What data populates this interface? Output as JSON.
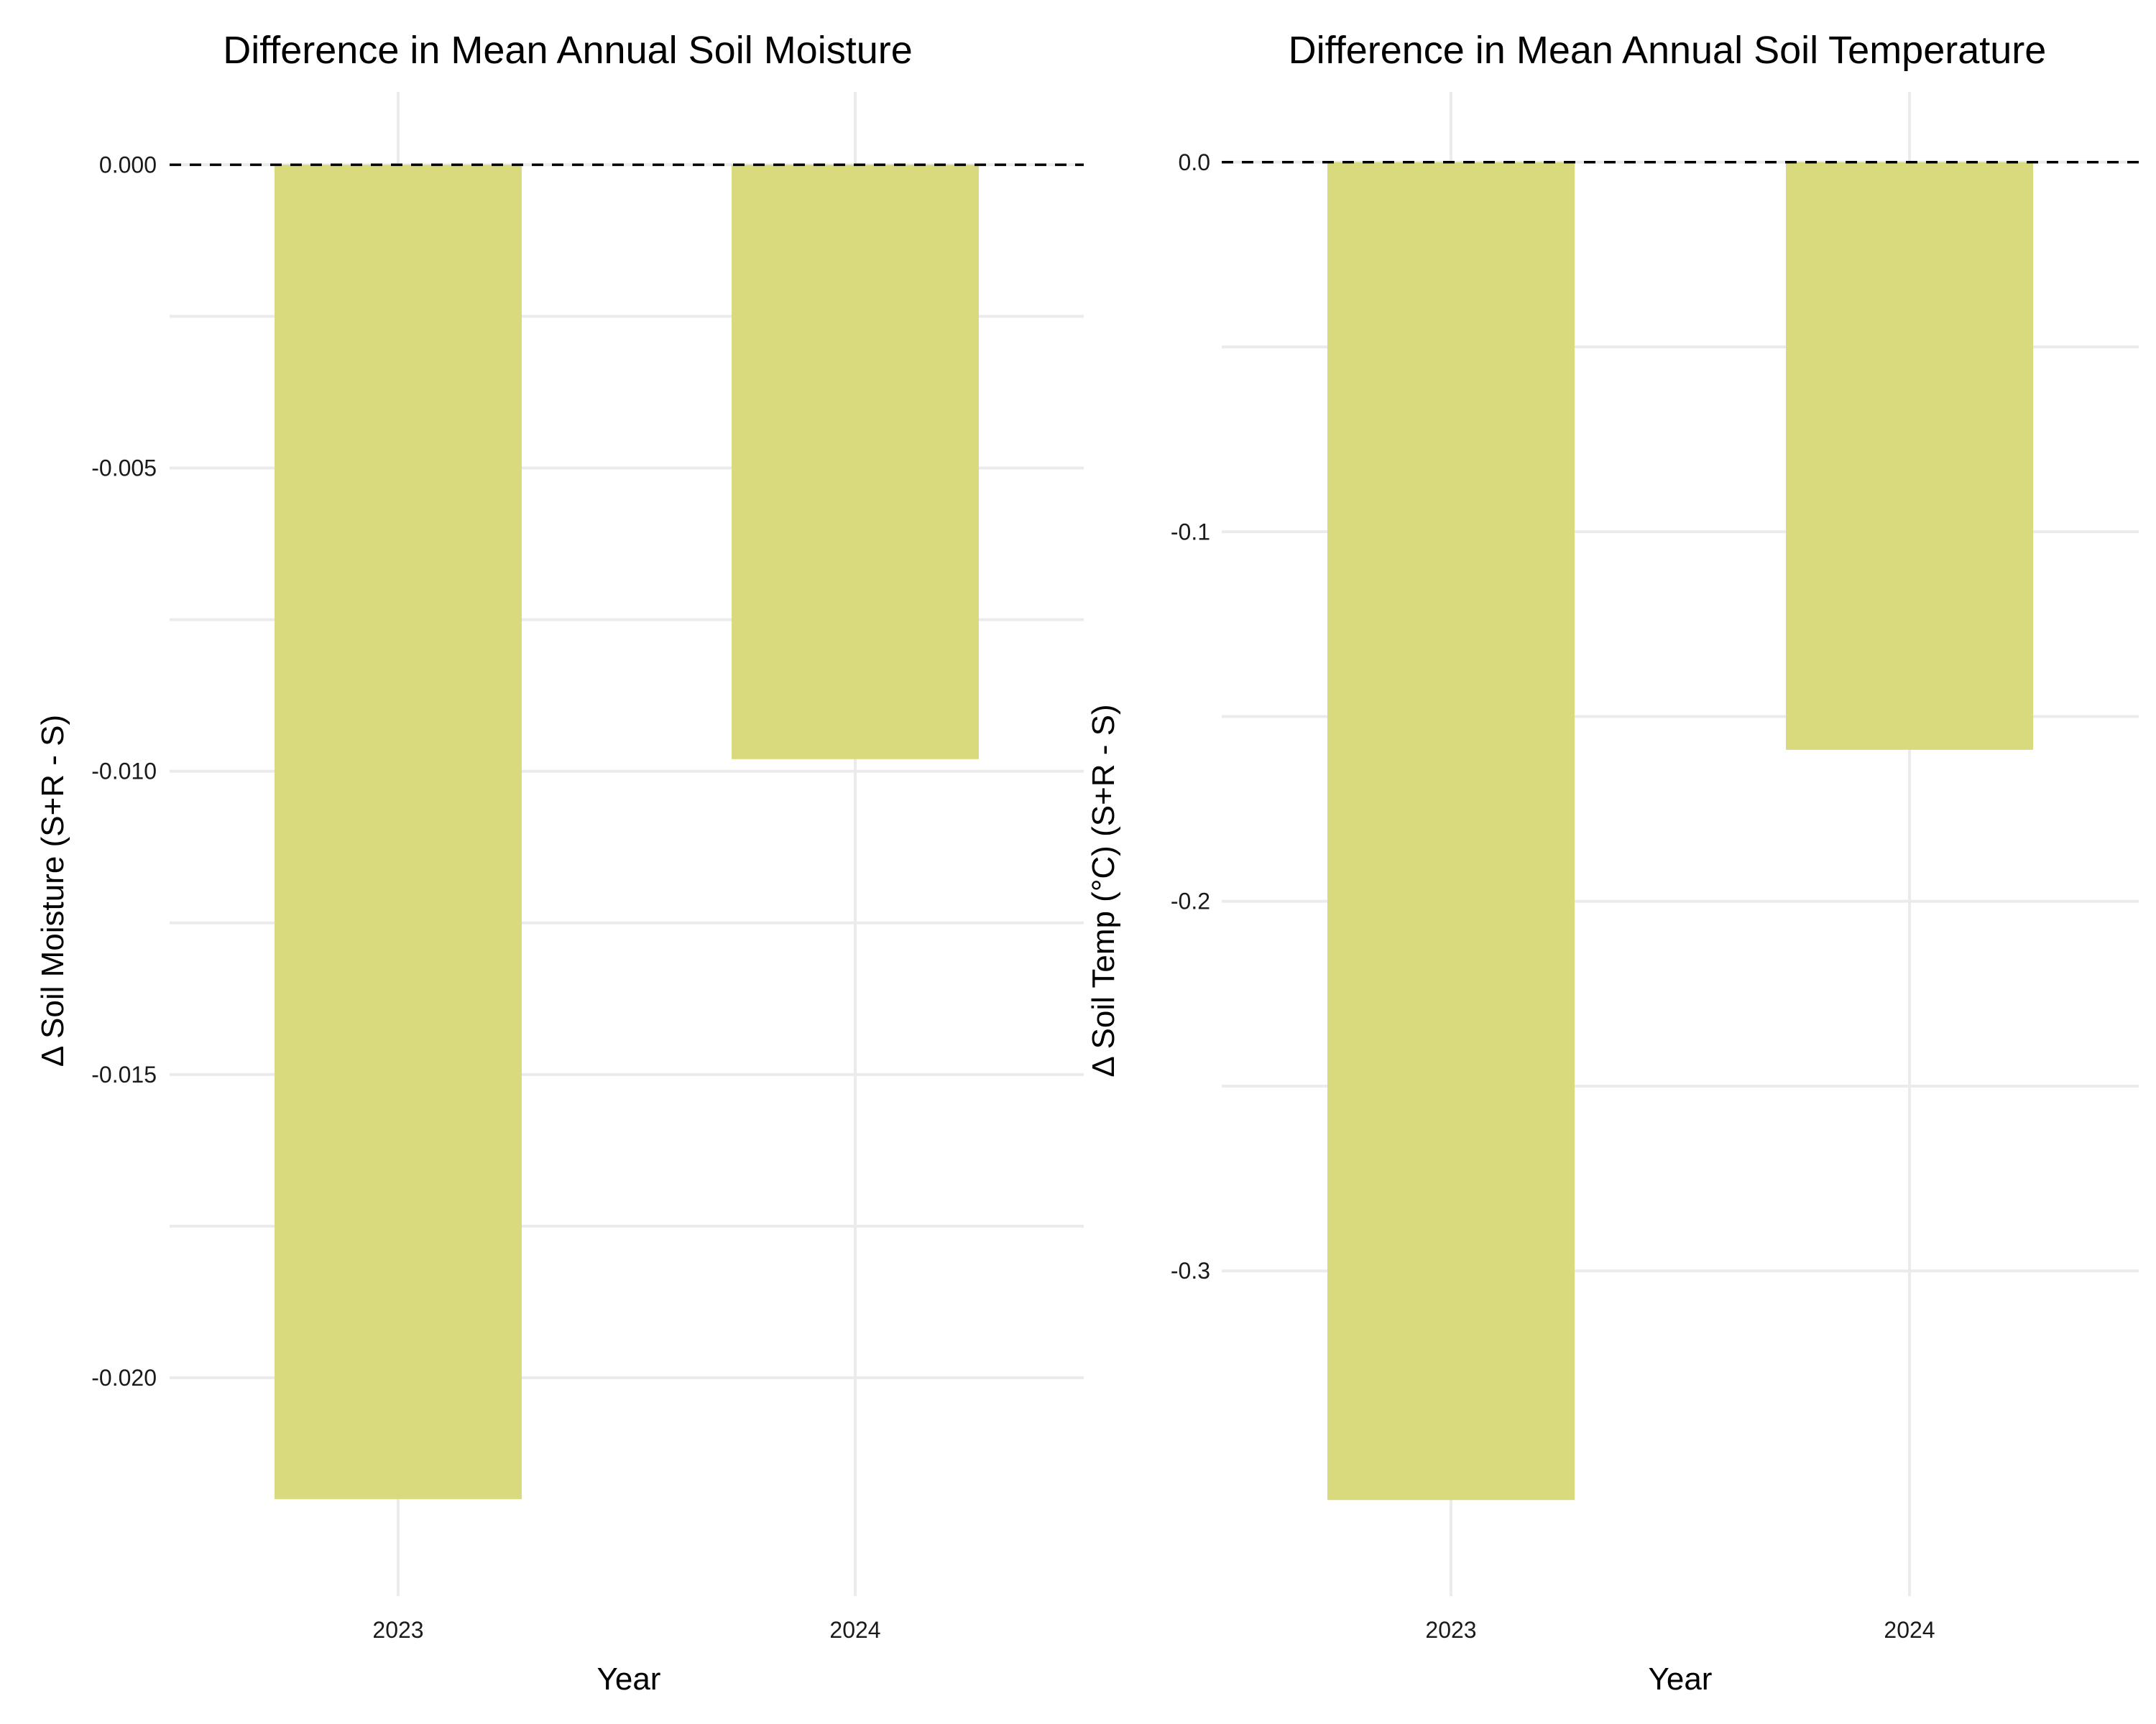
{
  "chart_data": [
    {
      "type": "bar",
      "title": "Difference in Mean Annual Soil Moisture",
      "xlabel": "Year",
      "ylabel": "Δ Soil Moisture (S+R - S)",
      "categories": [
        "2023",
        "2024"
      ],
      "values": [
        -0.022,
        -0.0098
      ],
      "ylim": [
        -0.0236,
        0.0012
      ],
      "yticks": [
        0.0,
        -0.005,
        -0.01,
        -0.015,
        -0.02
      ],
      "ytick_labels": [
        "0.000",
        "-0.005",
        "-0.010",
        "-0.015",
        "-0.020"
      ],
      "reference_line": {
        "y": 0,
        "style": "dashed"
      },
      "bar_color": "#d8da7d",
      "grid": true
    },
    {
      "type": "bar",
      "title": "Difference in Mean Annual Soil Temperature",
      "xlabel": "Year",
      "ylabel": "Δ Soil Temp (°C) (S+R - S)",
      "categories": [
        "2023",
        "2024"
      ],
      "values": [
        -0.362,
        -0.159
      ],
      "ylim": [
        -0.388,
        0.019
      ],
      "yticks": [
        0.0,
        -0.1,
        -0.2,
        -0.3
      ],
      "ytick_labels": [
        "0.0",
        "-0.1",
        "-0.2",
        "-0.3"
      ],
      "reference_line": {
        "y": 0,
        "style": "dashed"
      },
      "bar_color": "#d8da7d",
      "grid": true
    }
  ]
}
